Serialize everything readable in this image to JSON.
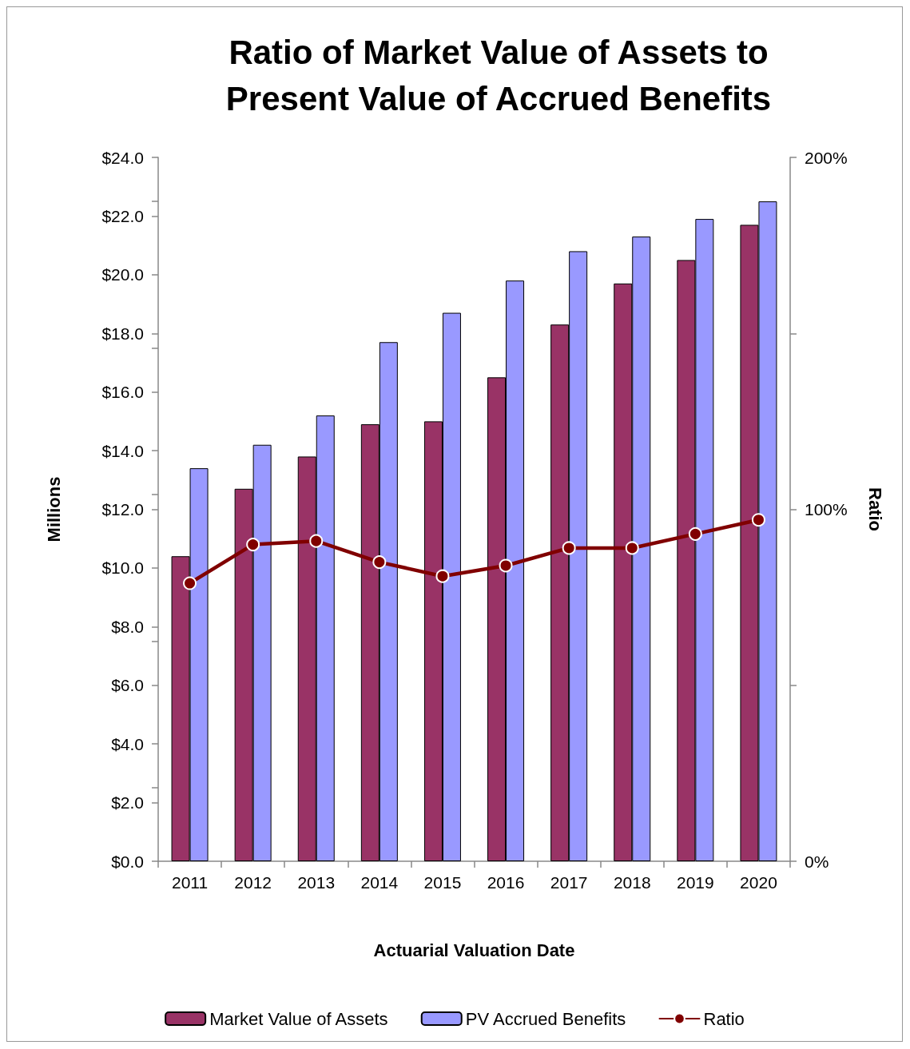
{
  "chart_data": {
    "type": "bar",
    "title": "Ratio of Market Value of Assets to\nPresent Value of Accrued Benefits",
    "xlabel": "Actuarial Valuation Date",
    "ylabel": "Millions",
    "y2label": "Ratio",
    "categories": [
      "2011",
      "2012",
      "2013",
      "2014",
      "2015",
      "2016",
      "2017",
      "2018",
      "2019",
      "2020"
    ],
    "series": [
      {
        "name": "Market Value of Assets",
        "color": "#993366",
        "values": [
          10.4,
          12.7,
          13.8,
          14.9,
          15.0,
          16.5,
          18.3,
          19.7,
          20.5,
          21.7
        ]
      },
      {
        "name": "PV Accrued Benefits",
        "color": "#9999ff",
        "values": [
          13.4,
          14.2,
          15.2,
          17.7,
          18.7,
          19.8,
          20.8,
          21.3,
          21.9,
          22.5
        ]
      },
      {
        "name": "Ratio",
        "type": "line",
        "axis": "y2",
        "color": "#800000",
        "marker": "circle",
        "values": [
          79,
          90,
          91,
          85,
          81,
          84,
          89,
          89,
          93,
          97
        ]
      }
    ],
    "ylim": [
      0,
      24
    ],
    "yticks": [
      {
        "value": 0,
        "label": "$0.0"
      },
      {
        "value": 2,
        "label": "$2.0"
      },
      {
        "value": 4,
        "label": "$4.0"
      },
      {
        "value": 6,
        "label": "$6.0"
      },
      {
        "value": 8,
        "label": "$8.0"
      },
      {
        "value": 10,
        "label": "$10.0"
      },
      {
        "value": 12,
        "label": "$12.0"
      },
      {
        "value": 14,
        "label": "$14.0"
      },
      {
        "value": 16,
        "label": "$16.0"
      },
      {
        "value": 18,
        "label": "$18.0"
      },
      {
        "value": 20,
        "label": "$20.0"
      },
      {
        "value": 22,
        "label": "$22.0"
      },
      {
        "value": 24,
        "label": "$24.0"
      }
    ],
    "y2lim": [
      0,
      200
    ],
    "y2ticks": [
      {
        "value": 0,
        "label": "0%"
      },
      {
        "value": 50,
        "label": null
      },
      {
        "value": 100,
        "label": "100%"
      },
      {
        "value": 150,
        "label": null
      },
      {
        "value": 200,
        "label": "200%"
      }
    ],
    "grid": false,
    "legend": "bottom"
  }
}
